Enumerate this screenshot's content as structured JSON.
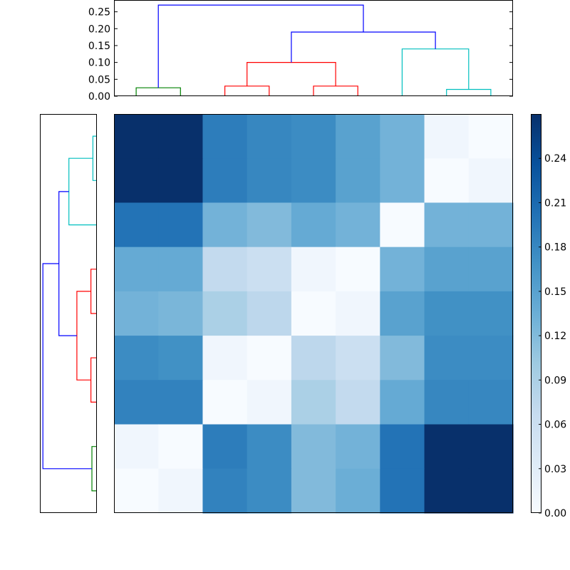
{
  "chart_data": [
    {
      "type": "heatmap",
      "title": "",
      "xlabel": "",
      "ylabel": "",
      "rows": 9,
      "cols": 9,
      "values": [
        [
          0.27,
          0.27,
          0.19,
          0.18,
          0.175,
          0.15,
          0.13,
          0.01,
          0.0
        ],
        [
          0.27,
          0.27,
          0.19,
          0.18,
          0.175,
          0.15,
          0.13,
          0.0,
          0.01
        ],
        [
          0.2,
          0.2,
          0.13,
          0.12,
          0.14,
          0.13,
          0.0,
          0.13,
          0.13
        ],
        [
          0.14,
          0.14,
          0.07,
          0.06,
          0.01,
          0.0,
          0.13,
          0.15,
          0.15
        ],
        [
          0.13,
          0.125,
          0.09,
          0.075,
          0.0,
          0.01,
          0.15,
          0.17,
          0.17
        ],
        [
          0.175,
          0.17,
          0.01,
          0.0,
          0.075,
          0.06,
          0.12,
          0.175,
          0.175
        ],
        [
          0.185,
          0.185,
          0.0,
          0.01,
          0.09,
          0.07,
          0.14,
          0.18,
          0.18
        ],
        [
          0.01,
          0.0,
          0.19,
          0.175,
          0.12,
          0.13,
          0.2,
          0.27,
          0.27
        ],
        [
          0.0,
          0.01,
          0.185,
          0.175,
          0.12,
          0.135,
          0.2,
          0.27,
          0.27
        ]
      ],
      "colormap": "Blues",
      "colors": {
        "low": "#f7fbff",
        "high": "#08306b"
      },
      "vmin": 0.0,
      "vmax": 0.27
    },
    {
      "type": "dendrogram",
      "orientation": "top",
      "ylim": [
        0.0,
        0.285
      ],
      "yticks": [
        "0.00",
        "0.05",
        "0.10",
        "0.15",
        "0.20",
        "0.25"
      ],
      "ytick_values": [
        0.0,
        0.05,
        0.1,
        0.15,
        0.2,
        0.25
      ],
      "leaf_count": 9,
      "links": [
        {
          "x": [
            0.5,
            0.5,
            1.5,
            1.5
          ],
          "y": [
            0.0,
            0.025,
            0.025,
            0.0
          ],
          "color": "#008000"
        },
        {
          "x": [
            2.5,
            2.5,
            3.5,
            3.5
          ],
          "y": [
            0.0,
            0.03,
            0.03,
            0.0
          ],
          "color": "#ff0000"
        },
        {
          "x": [
            4.5,
            4.5,
            5.5,
            5.5
          ],
          "y": [
            0.0,
            0.03,
            0.03,
            0.0
          ],
          "color": "#ff0000"
        },
        {
          "x": [
            3.0,
            3.0,
            5.0,
            5.0
          ],
          "y": [
            0.03,
            0.1,
            0.1,
            0.03
          ],
          "color": "#ff0000"
        },
        {
          "x": [
            7.5,
            7.5,
            8.5,
            8.5
          ],
          "y": [
            0.0,
            0.02,
            0.02,
            0.0
          ],
          "color": "#00bfbf"
        },
        {
          "x": [
            6.5,
            6.5,
            8.0,
            8.0
          ],
          "y": [
            0.0,
            0.14,
            0.14,
            0.02
          ],
          "color": "#00bfbf"
        },
        {
          "x": [
            4.0,
            4.0,
            7.25,
            7.25
          ],
          "y": [
            0.1,
            0.19,
            0.19,
            0.14
          ],
          "color": "#0000ff"
        },
        {
          "x": [
            1.0,
            1.0,
            5.625,
            5.625
          ],
          "y": [
            0.025,
            0.27,
            0.27,
            0.19
          ],
          "color": "#0000ff"
        }
      ]
    },
    {
      "type": "dendrogram",
      "orientation": "left",
      "xlim": [
        0.0,
        0.285
      ],
      "leaf_count": 9,
      "links": [
        {
          "y": [
            0.5,
            0.5,
            1.5,
            1.5
          ],
          "x": [
            0.0,
            0.02,
            0.02,
            0.0
          ],
          "color": "#00bfbf"
        },
        {
          "y": [
            1.0,
            1.0,
            2.5,
            2.5
          ],
          "x": [
            0.02,
            0.14,
            0.14,
            0.0
          ],
          "color": "#00bfbf"
        },
        {
          "y": [
            3.5,
            3.5,
            4.5,
            4.5
          ],
          "x": [
            0.0,
            0.03,
            0.03,
            0.0
          ],
          "color": "#ff0000"
        },
        {
          "y": [
            5.5,
            5.5,
            6.5,
            6.5
          ],
          "x": [
            0.0,
            0.03,
            0.03,
            0.0
          ],
          "color": "#ff0000"
        },
        {
          "y": [
            4.0,
            4.0,
            6.0,
            6.0
          ],
          "x": [
            0.03,
            0.1,
            0.1,
            0.03
          ],
          "color": "#ff0000"
        },
        {
          "y": [
            1.75,
            1.75,
            5.0,
            5.0
          ],
          "x": [
            0.14,
            0.19,
            0.19,
            0.1
          ],
          "color": "#0000ff"
        },
        {
          "y": [
            7.5,
            7.5,
            8.5,
            8.5
          ],
          "x": [
            0.0,
            0.025,
            0.025,
            0.0
          ],
          "color": "#008000"
        },
        {
          "y": [
            3.375,
            3.375,
            8.0,
            8.0
          ],
          "x": [
            0.19,
            0.27,
            0.27,
            0.025
          ],
          "color": "#0000ff"
        }
      ]
    },
    {
      "type": "colorbar",
      "vmin": 0.0,
      "vmax": 0.27,
      "ticks": [
        "0.00",
        "0.03",
        "0.06",
        "0.09",
        "0.12",
        "0.15",
        "0.18",
        "0.21",
        "0.24"
      ],
      "tick_values": [
        0.0,
        0.03,
        0.06,
        0.09,
        0.12,
        0.15,
        0.18,
        0.21,
        0.24
      ]
    }
  ]
}
